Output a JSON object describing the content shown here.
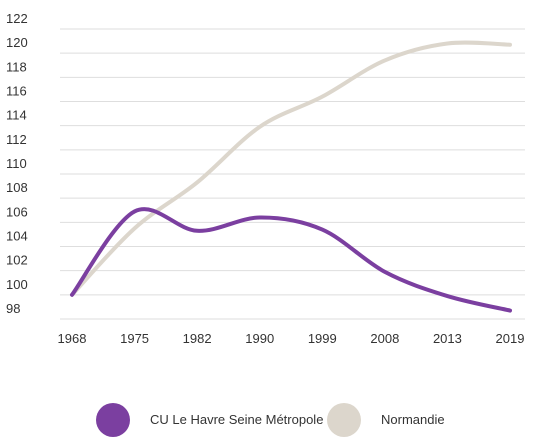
{
  "chart_data": {
    "type": "line",
    "categories": [
      "1968",
      "1975",
      "1982",
      "1990",
      "1999",
      "2008",
      "2013",
      "2019"
    ],
    "series": [
      {
        "name": "CU Le Havre Seine Métropole",
        "color": "#7b3fa0",
        "values": [
          100,
          106.9,
          105.3,
          106.4,
          105.4,
          101.9,
          99.9,
          98.7
        ]
      },
      {
        "name": "Normandie",
        "color": "#dcd6cc",
        "values": [
          100,
          105.5,
          109.3,
          113.9,
          116.4,
          119.4,
          120.8,
          120.7
        ]
      }
    ],
    "ylim": [
      98,
      122
    ],
    "yticks": [
      98,
      100,
      102,
      104,
      106,
      108,
      110,
      112,
      114,
      116,
      118,
      120,
      122
    ],
    "grid": true
  }
}
